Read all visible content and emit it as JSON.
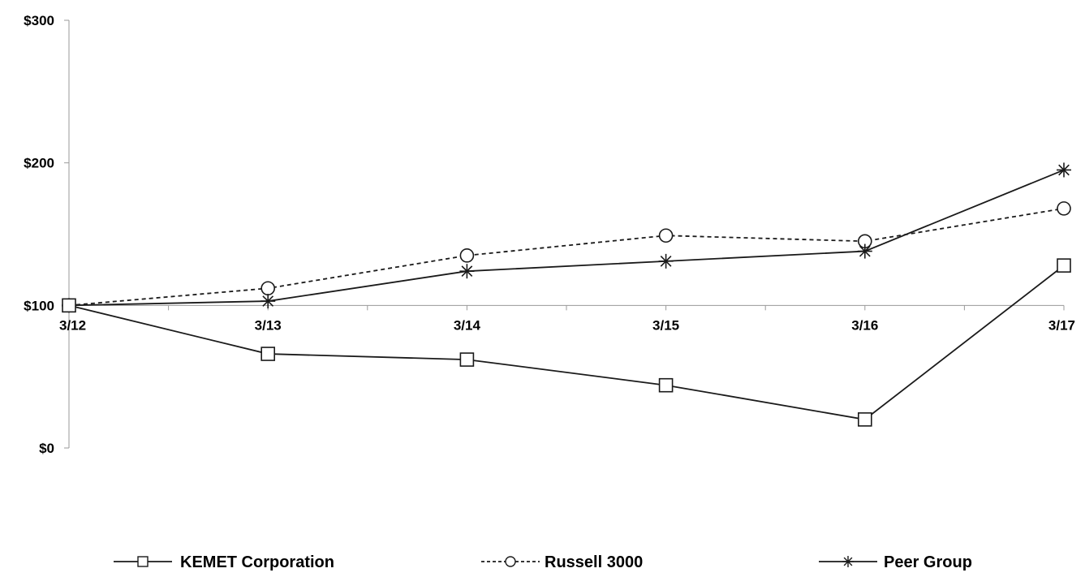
{
  "chart_data": {
    "type": "line",
    "categories": [
      "3/12",
      "3/13",
      "3/14",
      "3/15",
      "3/16",
      "3/17"
    ],
    "y_tick_labels": [
      "$0",
      "$100",
      "$200",
      "$300"
    ],
    "y_ticks": [
      0,
      100,
      200,
      300
    ],
    "ylim": [
      0,
      300
    ],
    "x_axis_crosses_at": 100,
    "grid": false,
    "legend_position": "bottom",
    "series": [
      {
        "name": "KEMET Corporation",
        "values": [
          100,
          66,
          62,
          44,
          20,
          128
        ],
        "marker": "square",
        "line_style": "solid"
      },
      {
        "name": "Russell 3000",
        "values": [
          100,
          112,
          135,
          149,
          145,
          168
        ],
        "marker": "circle",
        "line_style": "dashed"
      },
      {
        "name": "Peer Group",
        "values": [
          100,
          103,
          124,
          131,
          138,
          195
        ],
        "marker": "asterisk",
        "line_style": "solid"
      }
    ]
  }
}
